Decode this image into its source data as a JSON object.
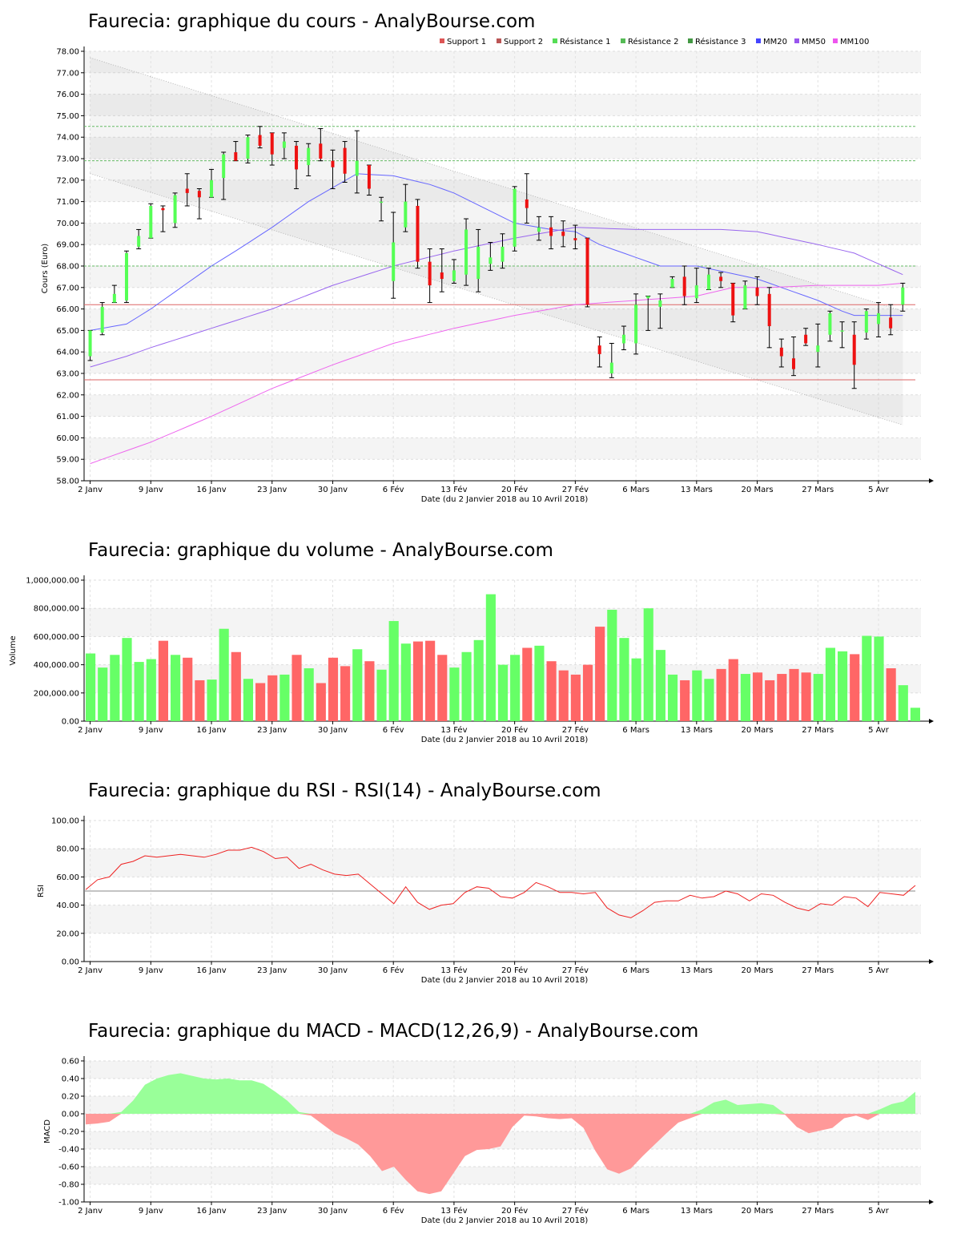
{
  "colors": {
    "up": "#55ff55",
    "down": "#ee1111",
    "volume_up": "#66ff66",
    "volume_down": "#ff6666",
    "mm20": "#6666ff",
    "mm50": "#9966ee",
    "mm100": "#ee66ee",
    "support": "#dd6666",
    "resistance": "#66bb66",
    "rsi": "#ee2222",
    "macd_pos": "#99ff99",
    "macd_neg": "#ff9999"
  },
  "chart_data": [
    {
      "id": "price",
      "type": "candlestick",
      "title": "Faurecia: graphique du cours - AnalyBourse.com",
      "xlabel": "Date (du 2 Janvier 2018 au 10 Avril 2018)",
      "ylabel": "Cours (Euro)",
      "ylim": [
        58,
        78
      ],
      "yticks": [
        "58.00",
        "59.00",
        "60.00",
        "61.00",
        "62.00",
        "63.00",
        "64.00",
        "65.00",
        "66.00",
        "67.00",
        "68.00",
        "69.00",
        "70.00",
        "71.00",
        "72.00",
        "73.00",
        "74.00",
        "75.00",
        "76.00",
        "77.00",
        "78.00"
      ],
      "xticks": [
        {
          "label": "2 Janv",
          "i": 0
        },
        {
          "label": "9 Janv",
          "i": 5
        },
        {
          "label": "16 Janv",
          "i": 10
        },
        {
          "label": "23 Janv",
          "i": 15
        },
        {
          "label": "30 Janv",
          "i": 20
        },
        {
          "label": "6 Fév",
          "i": 25
        },
        {
          "label": "13 Fév",
          "i": 30
        },
        {
          "label": "20 Fév",
          "i": 35
        },
        {
          "label": "27 Fév",
          "i": 40
        },
        {
          "label": "6 Mars",
          "i": 45
        },
        {
          "label": "13 Mars",
          "i": 50
        },
        {
          "label": "20 Mars",
          "i": 55
        },
        {
          "label": "27 Mars",
          "i": 60
        },
        {
          "label": "5 Avr",
          "i": 65
        }
      ],
      "grid": true,
      "legend_position": "top-right",
      "legend": [
        {
          "label": "Support 1",
          "color": "#dd5555"
        },
        {
          "label": "Support 2",
          "color": "#bb5555"
        },
        {
          "label": "Résistance 1",
          "color": "#55dd55"
        },
        {
          "label": "Résistance 2",
          "color": "#55bb55"
        },
        {
          "label": "Résistance 3",
          "color": "#449944"
        },
        {
          "label": "MM20",
          "color": "#4444ff"
        },
        {
          "label": "MM50",
          "color": "#9955ee"
        },
        {
          "label": "MM100",
          "color": "#ee55ee"
        }
      ],
      "candles": [
        [
          63.8,
          65.0,
          63.6,
          65.0
        ],
        [
          64.9,
          66.1,
          64.8,
          66.3
        ],
        [
          66.3,
          66.7,
          66.3,
          67.1
        ],
        [
          66.4,
          68.6,
          66.3,
          68.7
        ],
        [
          68.9,
          69.4,
          68.8,
          69.7
        ],
        [
          69.3,
          70.8,
          69.3,
          70.9
        ],
        [
          70.7,
          70.6,
          69.6,
          70.8
        ],
        [
          70.0,
          71.3,
          69.8,
          71.4
        ],
        [
          71.6,
          71.4,
          70.8,
          72.3
        ],
        [
          71.5,
          71.2,
          70.2,
          71.6
        ],
        [
          71.2,
          72.0,
          71.2,
          72.5
        ],
        [
          72.1,
          73.2,
          71.1,
          73.3
        ],
        [
          73.3,
          72.9,
          72.9,
          73.8
        ],
        [
          73.0,
          74.0,
          72.8,
          74.1
        ],
        [
          74.1,
          73.6,
          73.5,
          74.5
        ],
        [
          74.2,
          73.2,
          72.7,
          74.2
        ],
        [
          73.5,
          73.8,
          73.0,
          74.2
        ],
        [
          73.6,
          72.5,
          71.6,
          73.8
        ],
        [
          72.7,
          73.5,
          72.2,
          73.7
        ],
        [
          73.7,
          73.0,
          72.9,
          74.4
        ],
        [
          72.9,
          72.6,
          71.6,
          73.4
        ],
        [
          73.5,
          72.3,
          71.9,
          73.8
        ],
        [
          72.2,
          72.9,
          71.4,
          74.3
        ],
        [
          72.7,
          71.6,
          71.3,
          72.7
        ],
        [
          71.0,
          71.0,
          70.1,
          71.2
        ],
        [
          67.3,
          69.1,
          66.5,
          70.5
        ],
        [
          69.8,
          71.0,
          69.6,
          71.8
        ],
        [
          70.8,
          68.2,
          67.9,
          71.1
        ],
        [
          68.2,
          67.1,
          66.3,
          68.8
        ],
        [
          67.7,
          67.4,
          66.8,
          68.8
        ],
        [
          67.3,
          67.8,
          67.2,
          68.3
        ],
        [
          67.6,
          69.7,
          67.1,
          70.2
        ],
        [
          67.4,
          68.9,
          66.8,
          69.7
        ],
        [
          68.1,
          68.4,
          67.8,
          69.1
        ],
        [
          68.2,
          68.9,
          67.9,
          69.5
        ],
        [
          68.9,
          71.6,
          68.7,
          71.7
        ],
        [
          71.1,
          70.7,
          70.0,
          72.3
        ],
        [
          69.6,
          69.8,
          69.2,
          70.3
        ],
        [
          69.8,
          69.4,
          68.8,
          70.3
        ],
        [
          69.6,
          69.4,
          68.9,
          70.1
        ],
        [
          69.3,
          69.2,
          68.8,
          69.9
        ],
        [
          69.3,
          66.2,
          66.1,
          69.3
        ],
        [
          64.3,
          63.9,
          63.3,
          64.7
        ],
        [
          63.0,
          63.5,
          62.8,
          64.4
        ],
        [
          64.4,
          64.8,
          64.1,
          65.2
        ],
        [
          64.4,
          66.2,
          63.9,
          66.7
        ],
        [
          66.5,
          66.6,
          65.0,
          66.6
        ],
        [
          66.1,
          66.4,
          65.1,
          66.7
        ],
        [
          67.0,
          67.4,
          67.0,
          67.5
        ],
        [
          67.5,
          66.6,
          66.2,
          68.0
        ],
        [
          66.5,
          67.1,
          66.3,
          67.9
        ],
        [
          66.9,
          67.6,
          66.9,
          67.9
        ],
        [
          67.5,
          67.3,
          67.0,
          67.7
        ],
        [
          67.2,
          65.7,
          65.4,
          67.2
        ],
        [
          66.0,
          67.1,
          66.0,
          67.3
        ],
        [
          67.0,
          66.6,
          66.2,
          67.5
        ],
        [
          66.7,
          65.2,
          64.2,
          67.0
        ],
        [
          64.2,
          63.8,
          63.3,
          64.6
        ],
        [
          63.7,
          63.2,
          62.9,
          64.7
        ],
        [
          64.8,
          64.4,
          64.3,
          65.1
        ],
        [
          64.0,
          64.3,
          63.3,
          65.3
        ],
        [
          64.8,
          65.8,
          64.5,
          65.9
        ],
        [
          65.0,
          65.0,
          64.2,
          65.4
        ],
        [
          64.8,
          63.4,
          62.3,
          65.4
        ],
        [
          64.9,
          65.9,
          64.6,
          66.0
        ],
        [
          65.3,
          65.8,
          64.7,
          66.3
        ],
        [
          65.6,
          65.1,
          64.8,
          66.2
        ],
        [
          66.2,
          67.0,
          65.9,
          67.2
        ]
      ],
      "lines": [
        {
          "name": "MM20",
          "values": [
            [
              0,
              65.0
            ],
            [
              3,
              65.3
            ],
            [
              5,
              66.0
            ],
            [
              10,
              68.0
            ],
            [
              12,
              68.7
            ],
            [
              15,
              69.8
            ],
            [
              18,
              71.0
            ],
            [
              22,
              72.3
            ],
            [
              25,
              72.2
            ],
            [
              28,
              71.8
            ],
            [
              30,
              71.4
            ],
            [
              35,
              70.0
            ],
            [
              38,
              69.7
            ],
            [
              40,
              69.6
            ],
            [
              42,
              69.0
            ],
            [
              45,
              68.4
            ],
            [
              47,
              68.0
            ],
            [
              50,
              68.0
            ],
            [
              55,
              67.4
            ],
            [
              57,
              67.0
            ],
            [
              60,
              66.4
            ],
            [
              62,
              65.9
            ],
            [
              63,
              65.7
            ],
            [
              67,
              65.7
            ]
          ]
        },
        {
          "name": "MM50",
          "values": [
            [
              0,
              63.3
            ],
            [
              3,
              63.8
            ],
            [
              5,
              64.2
            ],
            [
              10,
              65.1
            ],
            [
              15,
              66.0
            ],
            [
              20,
              67.1
            ],
            [
              25,
              68.0
            ],
            [
              30,
              68.7
            ],
            [
              35,
              69.3
            ],
            [
              38,
              69.6
            ],
            [
              40,
              69.8
            ],
            [
              45,
              69.7
            ],
            [
              50,
              69.7
            ],
            [
              52,
              69.7
            ],
            [
              55,
              69.6
            ],
            [
              60,
              69.0
            ],
            [
              63,
              68.6
            ],
            [
              67,
              67.6
            ]
          ]
        },
        {
          "name": "MM100",
          "values": [
            [
              0,
              58.8
            ],
            [
              5,
              59.8
            ],
            [
              10,
              61.0
            ],
            [
              15,
              62.3
            ],
            [
              20,
              63.4
            ],
            [
              25,
              64.4
            ],
            [
              30,
              65.1
            ],
            [
              35,
              65.7
            ],
            [
              40,
              66.2
            ],
            [
              45,
              66.4
            ],
            [
              50,
              66.6
            ],
            [
              53,
              67.0
            ],
            [
              56,
              67.0
            ],
            [
              60,
              67.1
            ],
            [
              65,
              67.1
            ],
            [
              67,
              67.2
            ]
          ]
        }
      ],
      "support_lines": [
        66.2,
        62.7
      ],
      "resistance_lines": [
        74.5,
        72.9,
        68.0
      ],
      "channel": [
        [
          0,
          77.7
        ],
        [
          67,
          65.9
        ],
        [
          0,
          72.3
        ],
        [
          67,
          60.6
        ]
      ]
    },
    {
      "id": "volume",
      "type": "bar",
      "title": "Faurecia: graphique du volume - AnalyBourse.com",
      "xlabel": "Date (du 2 Janvier 2018 au 10 Avril 2018)",
      "ylabel": "Volume",
      "ylim": [
        0,
        1000000
      ],
      "yticks": [
        "0.00",
        "200,000.00",
        "400,000.00",
        "600,000.00",
        "800,000.00",
        "1,000,000.00"
      ],
      "grid": true,
      "values": [
        480000,
        380000,
        470000,
        590000,
        420000,
        440000,
        570000,
        470000,
        450000,
        290000,
        295000,
        655000,
        490000,
        300000,
        270000,
        325000,
        330000,
        470000,
        375000,
        270000,
        450000,
        390000,
        510000,
        425000,
        365000,
        710000,
        550000,
        565000,
        570000,
        470000,
        380000,
        490000,
        575000,
        900000,
        400000,
        470000,
        520000,
        535000,
        425000,
        360000,
        330000,
        400000,
        670000,
        790000,
        590000,
        445000,
        800000,
        505000,
        330000,
        290000,
        360000,
        300000,
        370000,
        440000,
        335000,
        345000,
        290000,
        335000,
        370000,
        345000,
        335000,
        520000,
        495000,
        475000,
        605000,
        600000,
        375000,
        255000,
        95000
      ]
    },
    {
      "id": "rsi",
      "type": "line",
      "title": "Faurecia: graphique du RSI - RSI(14) - AnalyBourse.com",
      "xlabel": "Date (du 2 Janvier 2018 au 10 Avril 2018)",
      "ylabel": "RSI",
      "ylim": [
        0,
        100
      ],
      "yticks": [
        "0.00",
        "20.00",
        "40.00",
        "60.00",
        "80.00",
        "100.00"
      ],
      "reference_line": 50,
      "grid": true,
      "values": [
        51,
        58,
        60,
        69,
        71,
        75,
        74,
        75,
        76,
        75,
        74,
        76,
        79,
        79,
        81,
        78,
        73,
        74,
        66,
        69,
        65,
        62,
        61,
        62,
        55,
        48,
        41,
        53,
        42,
        37,
        40,
        41,
        49,
        53,
        52,
        46,
        45,
        49,
        56,
        53,
        49,
        49,
        48,
        49,
        38,
        33,
        31,
        36,
        42,
        43,
        43,
        47,
        45,
        46,
        50,
        48,
        43,
        48,
        47,
        42,
        38,
        36,
        41,
        40,
        46,
        45,
        39,
        49,
        48,
        47,
        54
      ]
    },
    {
      "id": "macd",
      "type": "area",
      "title": "Faurecia: graphique du MACD - MACD(12,26,9) - AnalyBourse.com",
      "xlabel": "Date (du 2 Janvier 2018 au 10 Avril 2018)",
      "ylabel": "MACD",
      "ylim": [
        -1,
        0.6
      ],
      "yticks": [
        "-1.00",
        "-0.80",
        "-0.60",
        "-0.40",
        "-0.20",
        "0.00",
        "0.20",
        "0.40",
        "0.60"
      ],
      "grid": true,
      "values": [
        -0.12,
        -0.11,
        -0.09,
        0.02,
        0.15,
        0.33,
        0.4,
        0.44,
        0.46,
        0.43,
        0.4,
        0.39,
        0.4,
        0.38,
        0.38,
        0.34,
        0.25,
        0.15,
        0.02,
        -0.02,
        -0.12,
        -0.22,
        -0.28,
        -0.35,
        -0.48,
        -0.65,
        -0.6,
        -0.75,
        -0.88,
        -0.91,
        -0.88,
        -0.68,
        -0.48,
        -0.41,
        -0.4,
        -0.37,
        -0.15,
        -0.02,
        -0.03,
        -0.05,
        -0.06,
        -0.05,
        -0.16,
        -0.42,
        -0.63,
        -0.68,
        -0.62,
        -0.48,
        -0.35,
        -0.22,
        -0.1,
        -0.05,
        0.05,
        0.13,
        0.16,
        0.1,
        0.11,
        0.12,
        0.1,
        -0.01,
        -0.15,
        -0.22,
        -0.19,
        -0.16,
        -0.05,
        -0.02,
        -0.07,
        0.05,
        0.11,
        0.14,
        0.25
      ]
    }
  ]
}
